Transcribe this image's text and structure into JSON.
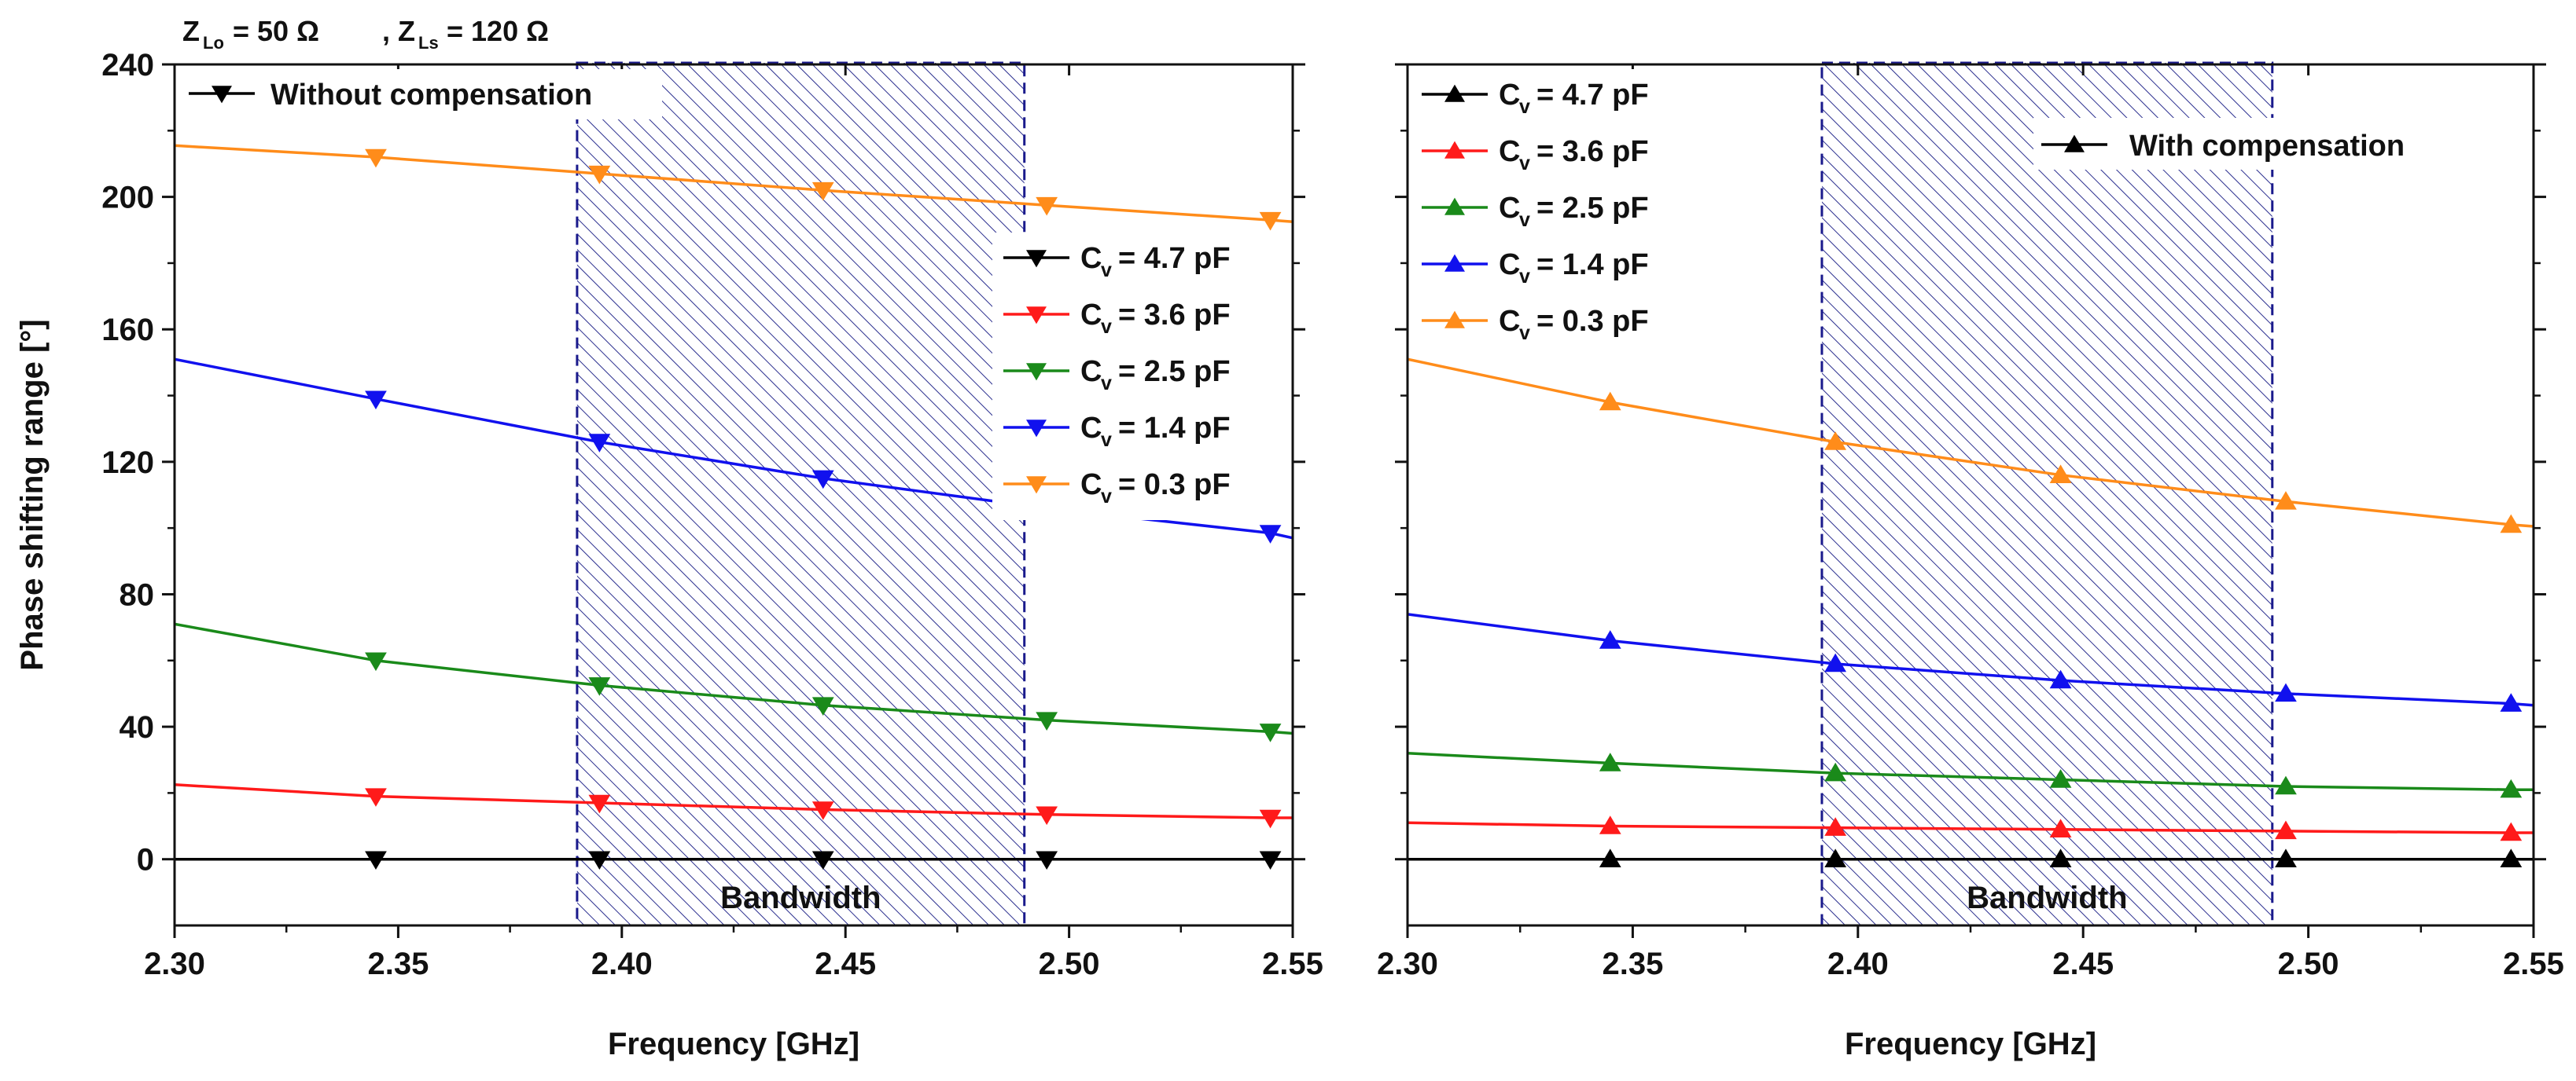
{
  "header": {
    "z_lo_symbol": "Z",
    "z_lo_sub": "Lo",
    "z_lo_value": "= 50 Ω",
    "separator": ",",
    "z_ls_symbol": "Z",
    "z_ls_sub": "Ls",
    "z_ls_value": "= 120 Ω"
  },
  "colors": {
    "black": "#000000",
    "red": "#ff1a1a",
    "green": "#1a8a1a",
    "blue": "#1111ee",
    "orange": "#ff8c1a",
    "hatch": "#2b2f8f",
    "band_edge": "#1a1a8c"
  },
  "bandwidth": {
    "label": "Bandwidth"
  },
  "chart_data": [
    {
      "type": "line",
      "name": "left-plot",
      "ylabel": "Phase shifting range [°]",
      "xlabel": "Frequency [GHz]",
      "xlim": [
        2.3,
        2.55
      ],
      "ylim": [
        -20,
        240
      ],
      "xticks": [
        "2.30",
        "2.35",
        "2.40",
        "2.45",
        "2.50",
        "2.55"
      ],
      "yticks": [
        "0",
        "40",
        "80",
        "120",
        "160",
        "200",
        "240"
      ],
      "bandwidth": [
        2.39,
        2.49
      ],
      "marker": "triangle-down",
      "legend_title": "Without compensation",
      "x": [
        2.3,
        2.345,
        2.395,
        2.445,
        2.495,
        2.545,
        2.55
      ],
      "markers_x": [
        2.345,
        2.395,
        2.445,
        2.495,
        2.545
      ],
      "series": [
        {
          "name": "4.7 pF",
          "color": "black",
          "values": [
            0,
            0,
            0,
            0,
            0,
            0,
            0
          ]
        },
        {
          "name": "3.6 pF",
          "color": "red",
          "values": [
            22.5,
            19,
            17,
            15,
            13.5,
            12.5,
            12.5
          ]
        },
        {
          "name": "2.5 pF",
          "color": "green",
          "values": [
            71,
            60,
            52.5,
            46.5,
            42,
            38.5,
            38
          ]
        },
        {
          "name": "1.4 pF",
          "color": "blue",
          "values": [
            151,
            139,
            126,
            115,
            106,
            98.5,
            97
          ]
        },
        {
          "name": "0.3 pF",
          "color": "orange",
          "values": [
            215.5,
            212,
            207,
            202,
            197.5,
            193,
            192.5
          ]
        }
      ]
    },
    {
      "type": "line",
      "name": "right-plot",
      "ylabel": "",
      "xlabel": "Frequency [GHz]",
      "xlim": [
        2.3,
        2.55
      ],
      "ylim": [
        -20,
        240
      ],
      "xticks": [
        "2.30",
        "2.35",
        "2.40",
        "2.45",
        "2.50",
        "2.55"
      ],
      "yticks": [],
      "bandwidth": [
        2.392,
        2.492
      ],
      "marker": "triangle-up",
      "legend_title": "With compensation",
      "x": [
        2.3,
        2.345,
        2.395,
        2.445,
        2.495,
        2.545,
        2.55
      ],
      "markers_x": [
        2.345,
        2.395,
        2.445,
        2.495,
        2.545
      ],
      "series": [
        {
          "name": "4.7 pF",
          "color": "black",
          "values": [
            0,
            0,
            0,
            0,
            0,
            0,
            0
          ]
        },
        {
          "name": "3.6 pF",
          "color": "red",
          "values": [
            11,
            10,
            9.5,
            9,
            8.5,
            8,
            8
          ]
        },
        {
          "name": "2.5 pF",
          "color": "green",
          "values": [
            32,
            29,
            26,
            24,
            22,
            21,
            21
          ]
        },
        {
          "name": "1.4 pF",
          "color": "blue",
          "values": [
            74,
            66,
            59,
            54,
            50,
            47,
            46.5
          ]
        },
        {
          "name": "0.3 pF",
          "color": "orange",
          "values": [
            151,
            138,
            126,
            116,
            108,
            101,
            100.5
          ]
        }
      ]
    }
  ]
}
